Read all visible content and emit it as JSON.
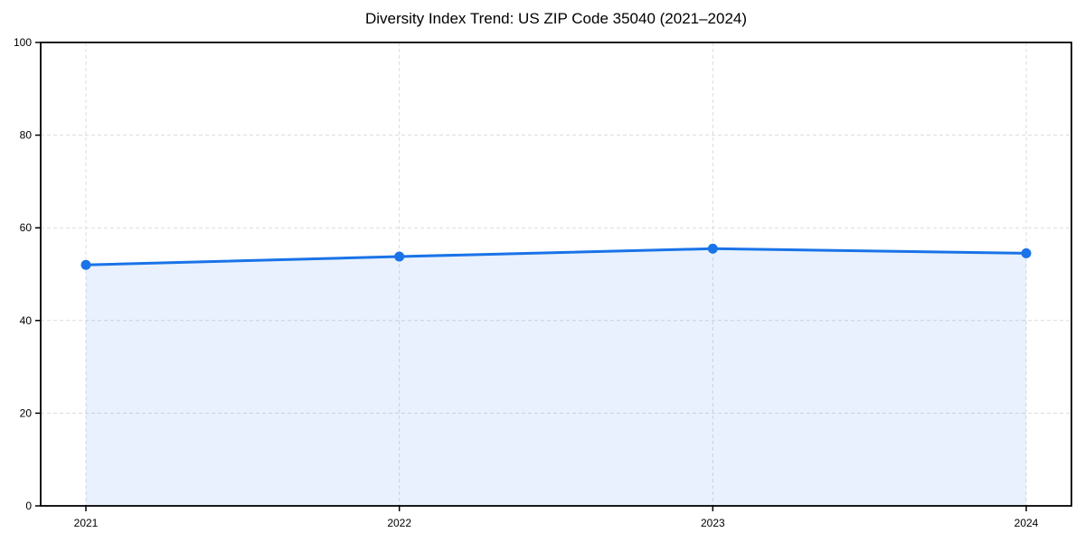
{
  "figure": {
    "background": "#ffffff"
  },
  "chart_data": {
    "type": "area",
    "title": "Diversity Index Trend: US ZIP Code 35040 (2021–2024)",
    "categories": [
      "2021",
      "2022",
      "2023",
      "2024"
    ],
    "series": [
      {
        "name": "Diversity Index",
        "values": [
          52,
          53.8,
          55.5,
          54.5
        ]
      }
    ],
    "xlabel": "",
    "ylabel": "",
    "ylim": [
      0,
      100
    ],
    "yticks": [
      0,
      20,
      40,
      60,
      80,
      100
    ],
    "grid": true,
    "grid_style": "dashed",
    "legend": false,
    "legend_position": "none",
    "line_color": "#1a73e8",
    "marker_color": "#1a73e8",
    "fill_color": "rgba(26, 115, 232, 0.10)",
    "grid_color": "#dcdcdc",
    "axis_color": "#000000",
    "tick_label_color": "#000000",
    "title_color": "#000000"
  }
}
